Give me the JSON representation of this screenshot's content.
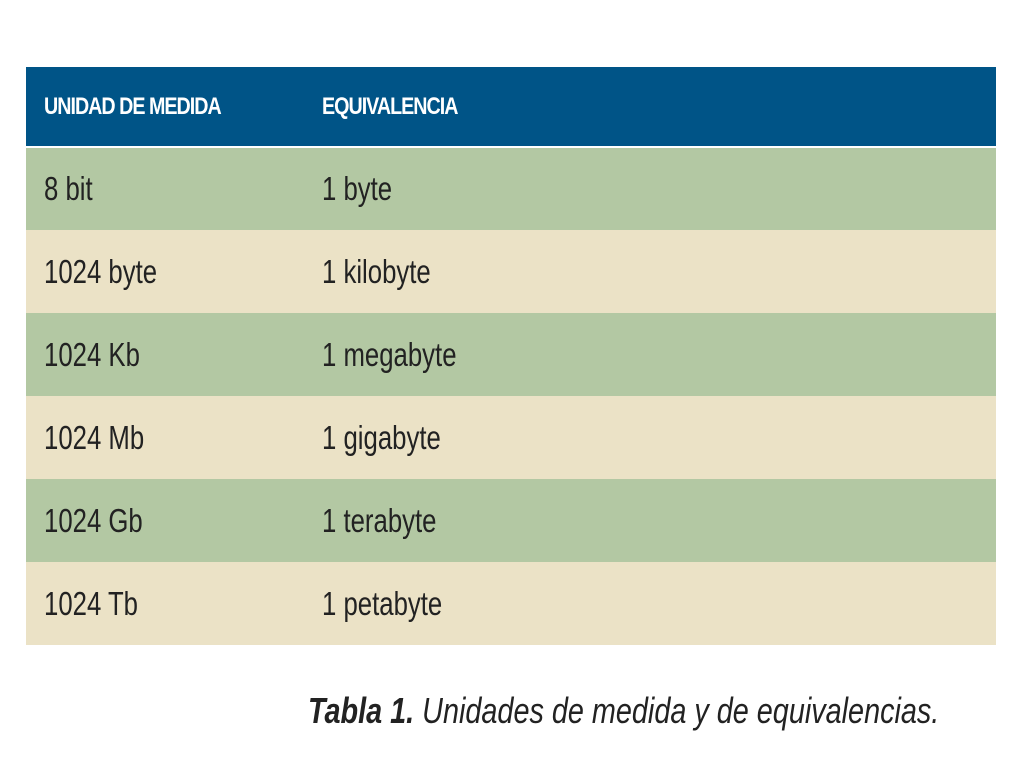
{
  "table": {
    "headers": [
      "UNIDAD DE MEDIDA",
      "EQUIVALENCIA"
    ],
    "rows": [
      [
        "8 bit",
        "1 byte"
      ],
      [
        "1024 byte",
        "1 kilobyte"
      ],
      [
        "1024 Kb",
        "1 megabyte"
      ],
      [
        "1024 Mb",
        "1 gigabyte"
      ],
      [
        "1024 Gb",
        "1 terabyte"
      ],
      [
        "1024 Tb",
        "1 petabyte"
      ]
    ],
    "colors": {
      "header_bg": "#005487",
      "row_odd": "#b3c8a3",
      "row_even": "#ebe2c6"
    }
  },
  "caption": {
    "lead": "Tabla 1.",
    "text": " Unidades de medida y de equivalencias."
  }
}
